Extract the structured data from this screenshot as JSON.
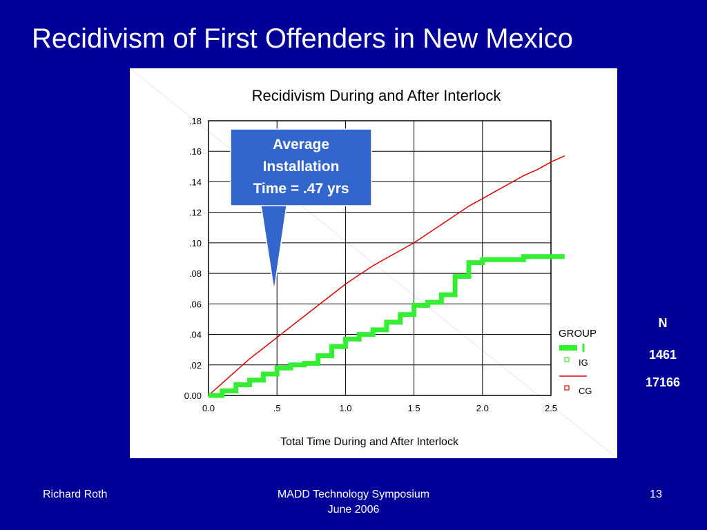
{
  "slide": {
    "title": "Recidivism of First Offenders in New Mexico",
    "footer_left": "Richard Roth",
    "footer_center_line1": "MADD Technology Symposium",
    "footer_center_line2": "June 2006",
    "page_number": "13"
  },
  "callout": {
    "text": "Average\nInstallation\nTime = .47 yrs"
  },
  "n_table": {
    "header": "N",
    "values": [
      "1461",
      "17166"
    ]
  },
  "colors": {
    "background": "#000099",
    "callout_fill": "#3366cc",
    "ig_series": "#33ee33",
    "cg_series": "#dd0000"
  },
  "chart_data": {
    "type": "line",
    "title": "Recidivism During and After Interlock",
    "xlabel": "Total Time During and After Interlock",
    "ylabel": "",
    "xlim": [
      0,
      2.5
    ],
    "ylim": [
      0,
      0.18
    ],
    "x_ticks": [
      0,
      0.5,
      1.0,
      1.5,
      2.0,
      2.5
    ],
    "x_tick_labels": [
      "0.0",
      ".5",
      "1.0",
      "1.5",
      "2.0",
      "2.5"
    ],
    "y_ticks": [
      0,
      0.02,
      0.04,
      0.06,
      0.08,
      0.1,
      0.12,
      0.14,
      0.16,
      0.18
    ],
    "y_tick_labels": [
      "0.00",
      ".02",
      ".04",
      ".06",
      ".08",
      ".10",
      ".12",
      ".14",
      ".16",
      ".18"
    ],
    "grid": true,
    "legend_title": "GROUP",
    "legend_position": "right",
    "series": [
      {
        "name": "IG",
        "color": "#33ee33",
        "style": "step",
        "x": [
          0.0,
          0.1,
          0.2,
          0.3,
          0.4,
          0.5,
          0.6,
          0.7,
          0.8,
          0.9,
          1.0,
          1.1,
          1.2,
          1.3,
          1.4,
          1.5,
          1.6,
          1.7,
          1.8,
          1.9,
          2.0,
          2.1,
          2.2,
          2.3,
          2.4,
          2.5,
          2.6
        ],
        "y": [
          0.0,
          0.003,
          0.007,
          0.01,
          0.014,
          0.018,
          0.02,
          0.021,
          0.026,
          0.032,
          0.037,
          0.04,
          0.043,
          0.048,
          0.053,
          0.059,
          0.061,
          0.066,
          0.078,
          0.087,
          0.089,
          0.089,
          0.089,
          0.091,
          0.091,
          0.091,
          0.091
        ]
      },
      {
        "name": "CG",
        "color": "#dd0000",
        "style": "line",
        "x": [
          0.0,
          0.1,
          0.2,
          0.3,
          0.4,
          0.5,
          0.6,
          0.7,
          0.8,
          0.9,
          1.0,
          1.1,
          1.2,
          1.3,
          1.4,
          1.5,
          1.6,
          1.7,
          1.8,
          1.9,
          2.0,
          2.1,
          2.2,
          2.3,
          2.4,
          2.5,
          2.6
        ],
        "y": [
          0.0,
          0.008,
          0.016,
          0.024,
          0.031,
          0.038,
          0.045,
          0.052,
          0.059,
          0.066,
          0.073,
          0.079,
          0.085,
          0.09,
          0.095,
          0.1,
          0.106,
          0.112,
          0.118,
          0.124,
          0.129,
          0.134,
          0.139,
          0.144,
          0.148,
          0.153,
          0.157
        ]
      }
    ]
  }
}
